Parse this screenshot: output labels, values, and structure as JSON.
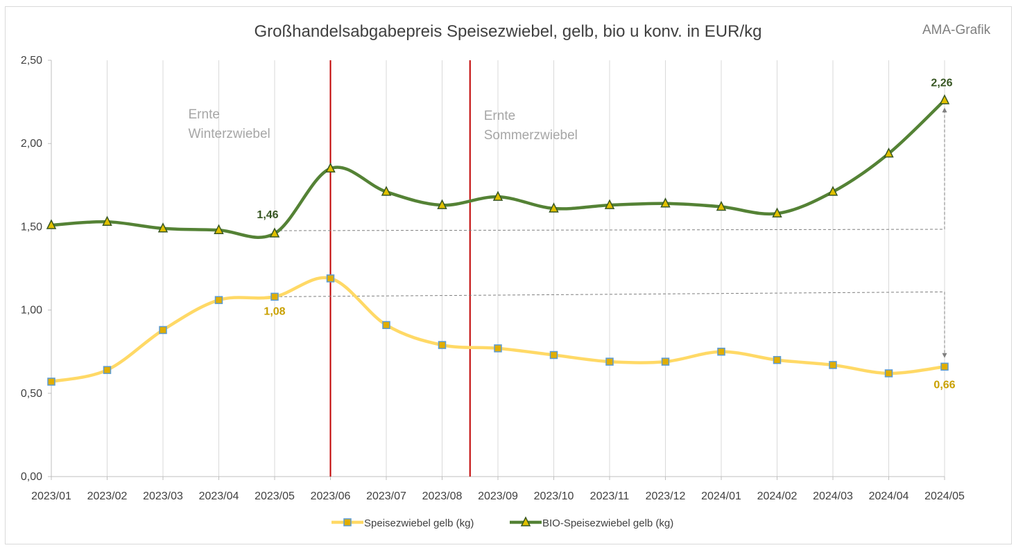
{
  "brand": "AMA-Grafik",
  "chart_data": {
    "type": "line",
    "title": "Großhandelsabgabepreis  Speisezwiebel, gelb, bio u konv. in EUR/kg",
    "categories": [
      "2023/01",
      "2023/02",
      "2023/03",
      "2023/04",
      "2023/05",
      "2023/06",
      "2023/07",
      "2023/08",
      "2023/09",
      "2023/10",
      "2023/11",
      "2023/12",
      "2024/01",
      "2024/02",
      "2024/03",
      "2024/04",
      "2024/05"
    ],
    "ylim": [
      0,
      2.5
    ],
    "yticks": [
      "0,00",
      "0,50",
      "1,00",
      "1,50",
      "2,00",
      "2,50"
    ],
    "ytick_values": [
      0,
      0.5,
      1.0,
      1.5,
      2.0,
      2.5
    ],
    "grid": "vertical",
    "legend": "bottom",
    "series": [
      {
        "name": "Speisezwiebel gelb (kg)",
        "color": "#ffd966",
        "marker": "square",
        "marker_fill": "#e0ad00",
        "marker_edge": "#5b9bd5",
        "values": [
          0.57,
          0.64,
          0.88,
          1.06,
          1.08,
          1.19,
          0.91,
          0.79,
          0.77,
          0.73,
          0.69,
          0.69,
          0.75,
          0.7,
          0.67,
          0.62,
          0.66
        ]
      },
      {
        "name": "BIO-Speisezwiebel gelb (kg)",
        "color": "#548235",
        "marker": "triangle",
        "marker_fill": "#e0c000",
        "marker_edge": "#375623",
        "values": [
          1.51,
          1.53,
          1.49,
          1.48,
          1.46,
          1.85,
          1.71,
          1.63,
          1.68,
          1.61,
          1.63,
          1.64,
          1.62,
          1.58,
          1.71,
          1.94,
          2.26
        ]
      }
    ],
    "data_labels": [
      {
        "series": 1,
        "index": 4,
        "text": "1,46",
        "color": "#375623"
      },
      {
        "series": 1,
        "index": 16,
        "text": "2,26",
        "color": "#375623"
      },
      {
        "series": 0,
        "index": 4,
        "text": "1,08",
        "color": "#c9a000"
      },
      {
        "series": 0,
        "index": 16,
        "text": "0,66",
        "color": "#c9a000"
      }
    ],
    "annotations": [
      {
        "line1": "Ernte",
        "line2": "Winterzwiebel"
      },
      {
        "line1": "Ernte",
        "line2": "Sommerzwiebel"
      }
    ],
    "vertical_markers": [
      {
        "at_category_index": 5,
        "color": "#c00000"
      },
      {
        "at_category_index": 7.5,
        "color": "#c00000"
      }
    ]
  }
}
